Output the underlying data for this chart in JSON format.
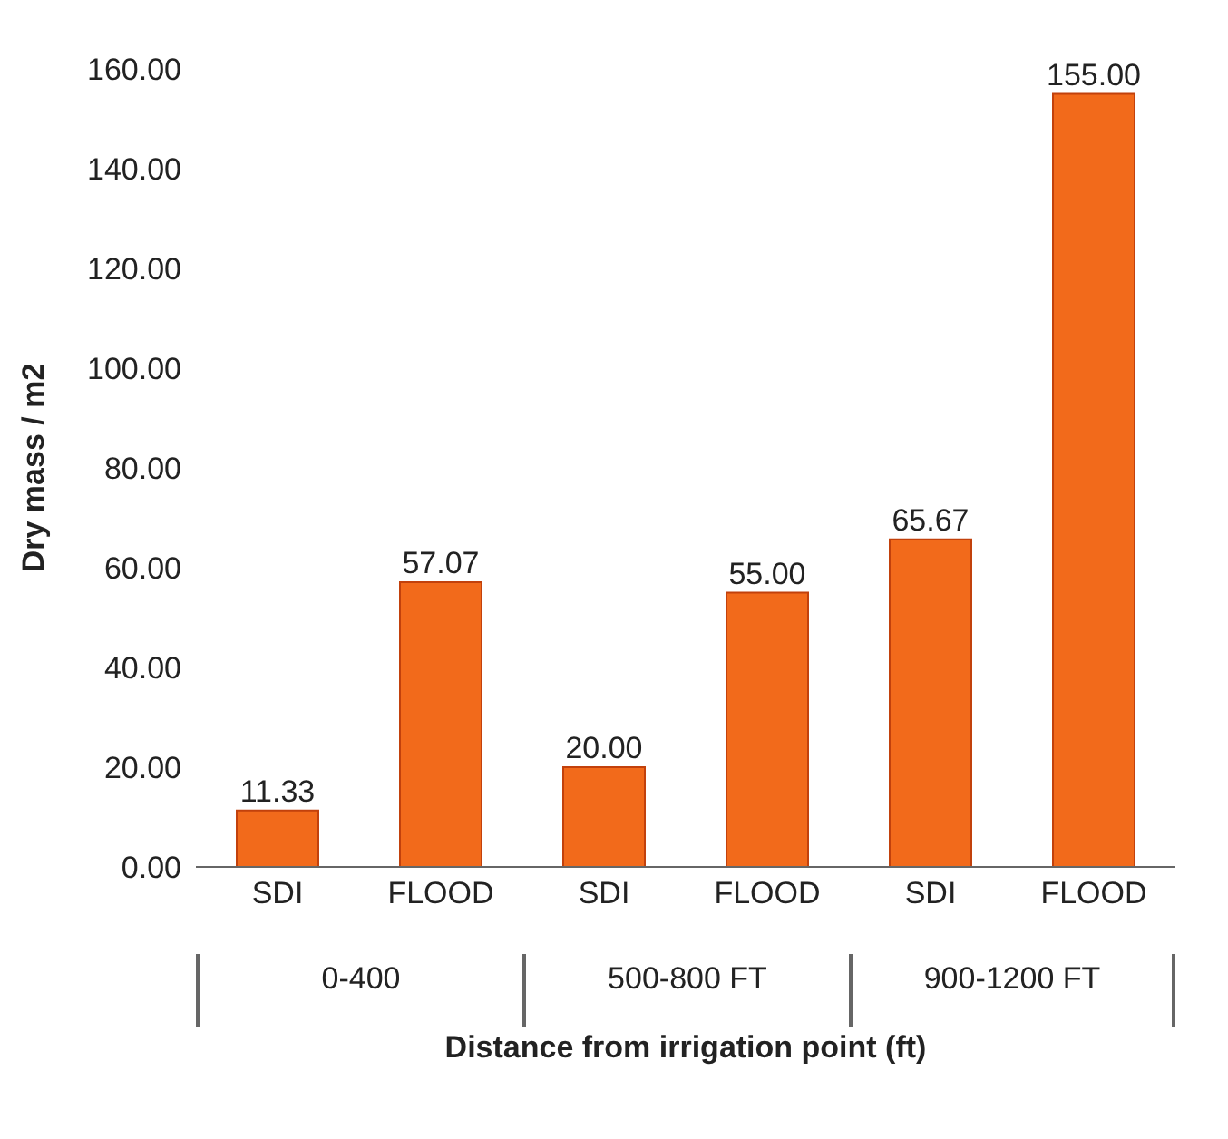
{
  "chart_data": {
    "type": "bar",
    "xlabel": "Distance from irrigation point (ft)",
    "ylabel": "Dry mass / m2",
    "categories": [
      "SDI",
      "FLOOD",
      "SDI",
      "FLOOD",
      "SDI",
      "FLOOD"
    ],
    "values": [
      11.33,
      57.07,
      20.0,
      55.0,
      65.67,
      155.0
    ],
    "value_labels": [
      "11.33",
      "57.07",
      "20.00",
      "55.00",
      "65.67",
      "155.00"
    ],
    "color": "#f26a1b",
    "ylim": [
      0,
      160
    ],
    "yticks": [
      {
        "value": 0,
        "label": "0.00"
      },
      {
        "value": 20,
        "label": "20.00"
      },
      {
        "value": 40,
        "label": "40.00"
      },
      {
        "value": 60,
        "label": "60.00"
      },
      {
        "value": 80,
        "label": "80.00"
      },
      {
        "value": 100,
        "label": "100.00"
      },
      {
        "value": 120,
        "label": "120.00"
      },
      {
        "value": 140,
        "label": "140.00"
      },
      {
        "value": 160,
        "label": "160.00"
      }
    ],
    "annotations": [
      "0-400",
      "500-800 FT",
      "900-1200 FT"
    ]
  }
}
